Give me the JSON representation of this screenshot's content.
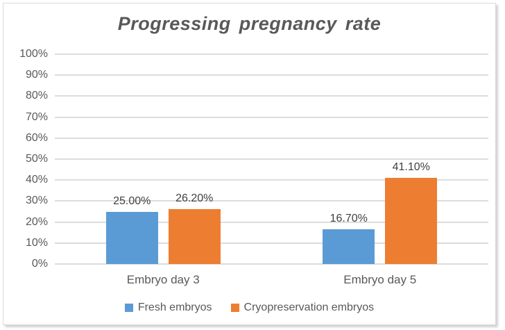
{
  "chart_data": {
    "type": "bar",
    "title": "Progressing pregnancy rate",
    "categories": [
      "Embryo day 3",
      "Embryo day 5"
    ],
    "series": [
      {
        "name": "Fresh embryos",
        "color": "#5B9BD5",
        "values": [
          25.0,
          16.7
        ],
        "labels": [
          "25.00%",
          "16.70%"
        ]
      },
      {
        "name": "Cryopreservation embryos",
        "color": "#ED7D31",
        "values": [
          26.2,
          41.1
        ],
        "labels": [
          "26.20%",
          "41.10%"
        ]
      }
    ],
    "y_axis": {
      "min": 0,
      "max": 100,
      "step": 10,
      "ticks": [
        {
          "value": 0,
          "label": "0%"
        },
        {
          "value": 10,
          "label": "10%"
        },
        {
          "value": 20,
          "label": "20%"
        },
        {
          "value": 30,
          "label": "30%"
        },
        {
          "value": 40,
          "label": "40%"
        },
        {
          "value": 50,
          "label": "50%"
        },
        {
          "value": 60,
          "label": "60%"
        },
        {
          "value": 70,
          "label": "70%"
        },
        {
          "value": 80,
          "label": "80%"
        },
        {
          "value": 90,
          "label": "90%"
        },
        {
          "value": 100,
          "label": "100%"
        }
      ]
    },
    "grid": true,
    "legend_position": "bottom",
    "colors": {
      "title_text": "#595959",
      "axis_text": "#595959",
      "data_label_text": "#404040",
      "gridline": "#dcdcdc",
      "border": "#d9d9d9",
      "background": "#ffffff"
    }
  }
}
